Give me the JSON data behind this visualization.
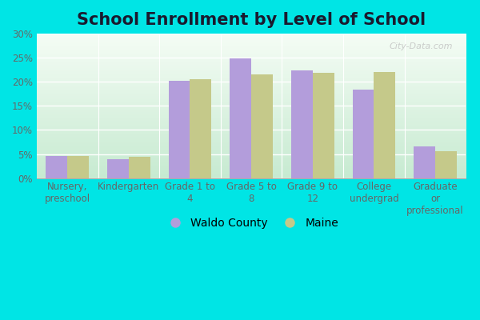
{
  "title": "School Enrollment by Level of School",
  "categories": [
    "Nursery,\npreschool",
    "Kindergarten",
    "Grade 1 to\n4",
    "Grade 5 to\n8",
    "Grade 9 to\n12",
    "College\nundergrad",
    "Graduate\nor\nprofessional"
  ],
  "waldo_values": [
    4.6,
    3.9,
    20.2,
    24.9,
    22.4,
    18.4,
    6.5
  ],
  "maine_values": [
    4.6,
    4.5,
    20.5,
    21.5,
    21.8,
    22.0,
    5.6
  ],
  "waldo_color": "#b39ddb",
  "maine_color": "#c5c98a",
  "outer_background": "#00e5e5",
  "ylim": [
    0,
    30
  ],
  "yticks": [
    0,
    5,
    10,
    15,
    20,
    25,
    30
  ],
  "ytick_labels": [
    "0%",
    "5%",
    "10%",
    "15%",
    "20%",
    "25%",
    "30%"
  ],
  "legend_waldo": "Waldo County",
  "legend_maine": "Maine",
  "title_fontsize": 15,
  "tick_fontsize": 8.5,
  "legend_fontsize": 10,
  "watermark": "City-Data.com"
}
